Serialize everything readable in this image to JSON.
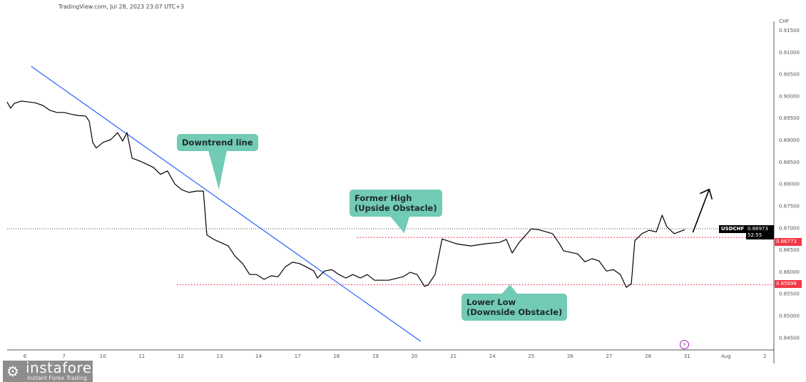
{
  "header": {
    "text": "TradingView.com, Jul 28, 2023 23:07 UTC+3"
  },
  "logo": {
    "name": "instaforex",
    "tagline": "Instant Forex Trading"
  },
  "colors": {
    "price_line": "#000000",
    "trendline": "#2962ff",
    "level_line": "#f23645",
    "callout": "#72cbb4",
    "event_icon": "#9c27b0"
  },
  "chart_data": {
    "type": "line",
    "symbol": "USDCHF",
    "currency": "CHF",
    "ylim": [
      0.8425,
      0.9175
    ],
    "y_ticks": [
      "0.91500",
      "0.91000",
      "0.90500",
      "0.90000",
      "0.89500",
      "0.89000",
      "0.88500",
      "0.88000",
      "0.87500",
      "0.87000",
      "0.86500",
      "0.86000",
      "0.85500",
      "0.85000",
      "0.84500"
    ],
    "y_tick_values": [
      0.915,
      0.91,
      0.905,
      0.9,
      0.895,
      0.89,
      0.885,
      0.88,
      0.875,
      0.87,
      0.865,
      0.86,
      0.855,
      0.85,
      0.845
    ],
    "x_ticks": [
      "6",
      "7",
      "10",
      "11",
      "12",
      "13",
      "14",
      "17",
      "18",
      "19",
      "20",
      "21",
      "24",
      "25",
      "26",
      "27",
      "28",
      "31",
      "Aug",
      "2"
    ],
    "series": [
      {
        "x": [
          -0.46,
          -0.37,
          -0.27,
          -0.09,
          0.27,
          0.46,
          0.64,
          0.82,
          1.01,
          1.19,
          1.37,
          1.56,
          1.65,
          1.74,
          1.83,
          2.01,
          2.2,
          2.38,
          2.51,
          2.62,
          2.75,
          2.93,
          3.11,
          3.3,
          3.48,
          3.66,
          3.85,
          4.03,
          4.21,
          4.4,
          4.58,
          4.67,
          4.85,
          5.22,
          5.4,
          5.59,
          5.77,
          5.95,
          6.14,
          6.32,
          6.5,
          6.68,
          6.87,
          7.05,
          7.23,
          7.42,
          7.51,
          7.69,
          7.88,
          8.06,
          8.24,
          8.42,
          8.61,
          8.79,
          8.97,
          9.34,
          9.71,
          9.89,
          10.07,
          10.26,
          10.35,
          10.53,
          10.71,
          11.08,
          11.45,
          11.81,
          12.18,
          12.36,
          12.51,
          12.69,
          13.0,
          13.19,
          13.55,
          13.74,
          13.83,
          14.19,
          14.38,
          14.56,
          14.74,
          14.93,
          15.11,
          15.29,
          15.44,
          15.57,
          15.66,
          15.84,
          16.03,
          16.21,
          16.36,
          16.48,
          16.67,
          16.94
        ],
        "values": [
          0.8986,
          0.8972,
          0.8983,
          0.8988,
          0.8984,
          0.8978,
          0.8967,
          0.8962,
          0.8962,
          0.8958,
          0.8955,
          0.8954,
          0.8942,
          0.8894,
          0.8881,
          0.8894,
          0.89,
          0.8916,
          0.8897,
          0.8916,
          0.8858,
          0.8852,
          0.8845,
          0.8837,
          0.8821,
          0.8829,
          0.8799,
          0.8786,
          0.878,
          0.8783,
          0.8783,
          0.8683,
          0.8673,
          0.8658,
          0.8634,
          0.8618,
          0.8593,
          0.8593,
          0.8582,
          0.859,
          0.8588,
          0.861,
          0.8621,
          0.8618,
          0.861,
          0.8601,
          0.8585,
          0.8601,
          0.8604,
          0.8593,
          0.8585,
          0.8593,
          0.8585,
          0.8593,
          0.858,
          0.858,
          0.8588,
          0.8598,
          0.8593,
          0.8566,
          0.8569,
          0.8593,
          0.8674,
          0.8663,
          0.8658,
          0.8663,
          0.8666,
          0.8673,
          0.8642,
          0.8666,
          0.8697,
          0.8695,
          0.8686,
          0.8661,
          0.8647,
          0.864,
          0.8622,
          0.8629,
          0.8624,
          0.8601,
          0.8604,
          0.8593,
          0.8564,
          0.8572,
          0.867,
          0.8686,
          0.8694,
          0.869,
          0.8728,
          0.8702,
          0.8686,
          0.8695
        ]
      }
    ],
    "current_price": {
      "label": "USDCHF",
      "value": "0.86973",
      "countdown": "52:55",
      "price": 0.86973
    },
    "levels": [
      {
        "value": "0.86773",
        "price": 0.86773,
        "start_x": 8.52
      },
      {
        "value": "0.85698",
        "price": 0.85698,
        "start_x": 3.9
      }
    ],
    "trendline": {
      "start": [
        0.16,
        0.9067
      ],
      "end": [
        10.16,
        0.8441
      ]
    },
    "arrow": {
      "start": [
        17.15,
        0.8689
      ],
      "end": [
        17.57,
        0.8787
      ]
    },
    "annotations": [
      {
        "text_lines": [
          "Downtrend line"
        ],
        "target": [
          4.98,
          0.8787
        ]
      },
      {
        "text_lines": [
          "Former High",
          "(Upside Obstacle)"
        ],
        "target": [
          9.74,
          0.8687
        ]
      },
      {
        "text_lines": [
          "Lower Low",
          "(Downside Obstacle)"
        ],
        "target": [
          12.45,
          0.857
        ]
      }
    ],
    "grid": false
  }
}
